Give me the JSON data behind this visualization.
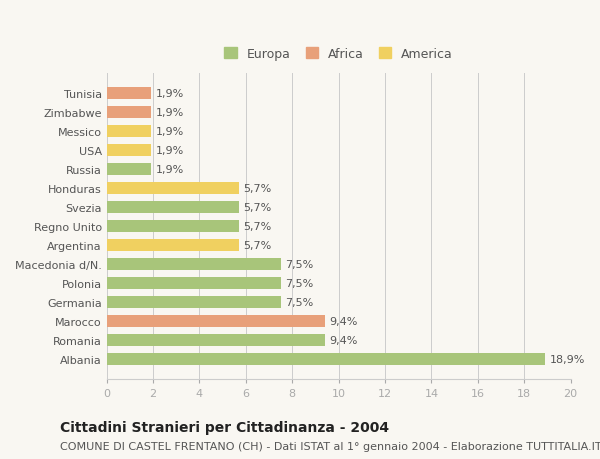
{
  "countries": [
    "Albania",
    "Romania",
    "Marocco",
    "Germania",
    "Polonia",
    "Macedonia d/N.",
    "Argentina",
    "Regno Unito",
    "Svezia",
    "Honduras",
    "Russia",
    "USA",
    "Messico",
    "Zimbabwe",
    "Tunisia"
  ],
  "values": [
    18.9,
    9.4,
    9.4,
    7.5,
    7.5,
    7.5,
    5.7,
    5.7,
    5.7,
    5.7,
    1.9,
    1.9,
    1.9,
    1.9,
    1.9
  ],
  "labels": [
    "18,9%",
    "9,4%",
    "9,4%",
    "7,5%",
    "7,5%",
    "7,5%",
    "5,7%",
    "5,7%",
    "5,7%",
    "5,7%",
    "1,9%",
    "1,9%",
    "1,9%",
    "1,9%",
    "1,9%"
  ],
  "regions": [
    "Europa",
    "Europa",
    "Africa",
    "Europa",
    "Europa",
    "Europa",
    "America",
    "Europa",
    "Europa",
    "America",
    "Europa",
    "America",
    "America",
    "Africa",
    "Africa"
  ],
  "region_colors": {
    "Europa": "#a8c57a",
    "Africa": "#e8a07a",
    "America": "#f0d060"
  },
  "legend_colors": {
    "Europa": "#a8c57a",
    "Africa": "#e8a07a",
    "America": "#f0d060"
  },
  "xlim": [
    0,
    20
  ],
  "xticks": [
    0,
    2,
    4,
    6,
    8,
    10,
    12,
    14,
    16,
    18,
    20
  ],
  "title": "Cittadini Stranieri per Cittadinanza - 2004",
  "subtitle": "COMUNE DI CASTEL FRENTANO (CH) - Dati ISTAT al 1° gennaio 2004 - Elaborazione TUTTITALIA.IT",
  "background_color": "#f9f7f2",
  "grid_color": "#cccccc",
  "bar_height": 0.65,
  "title_fontsize": 10,
  "subtitle_fontsize": 8,
  "label_fontsize": 8,
  "tick_fontsize": 8
}
